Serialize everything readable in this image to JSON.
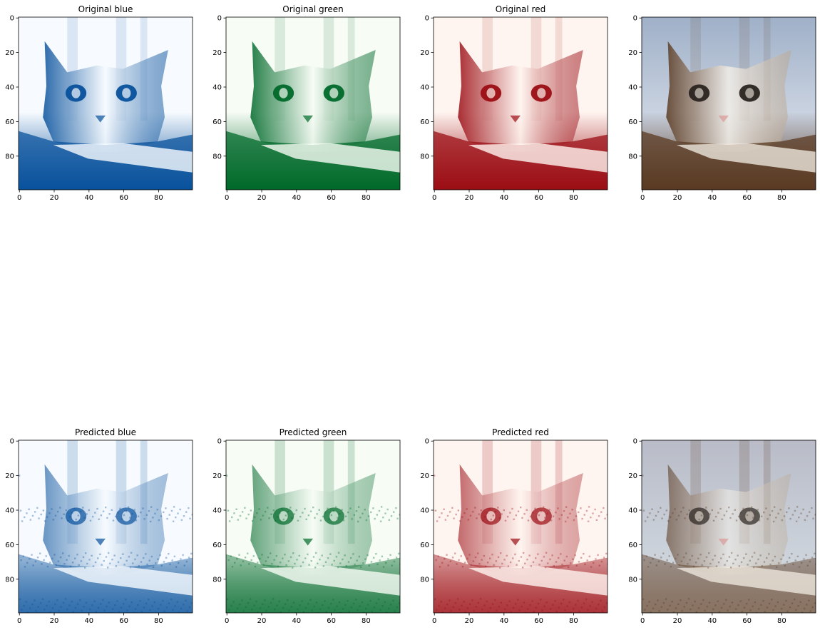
{
  "chart_data": {
    "type": "heatmap",
    "layout": "2 rows x 4 columns of image panels",
    "image_size": [
      100,
      100
    ],
    "x_ticks": [
      0,
      20,
      40,
      60,
      80
    ],
    "y_ticks": [
      0,
      20,
      40,
      60,
      80
    ],
    "xlim": [
      0,
      99
    ],
    "ylim": [
      99,
      0
    ],
    "panels": [
      {
        "row": 0,
        "col": 0,
        "title": "Original blue",
        "colormap": "Blues",
        "channel": "blue",
        "kind": "original"
      },
      {
        "row": 0,
        "col": 1,
        "title": "Original green",
        "colormap": "Greens",
        "channel": "green",
        "kind": "original"
      },
      {
        "row": 0,
        "col": 2,
        "title": "Original red",
        "colormap": "Reds",
        "channel": "red",
        "kind": "original"
      },
      {
        "row": 0,
        "col": 3,
        "title": "",
        "colormap": "rgb",
        "channel": "rgb",
        "kind": "original"
      },
      {
        "row": 1,
        "col": 0,
        "title": "Predicted blue",
        "colormap": "Blues",
        "channel": "blue",
        "kind": "predicted"
      },
      {
        "row": 1,
        "col": 1,
        "title": "Predicted green",
        "colormap": "Greens",
        "channel": "green",
        "kind": "predicted"
      },
      {
        "row": 1,
        "col": 2,
        "title": "Predicted red",
        "colormap": "Reds",
        "channel": "red",
        "kind": "predicted"
      },
      {
        "row": 1,
        "col": 3,
        "title": "",
        "colormap": "rgb",
        "channel": "rgb",
        "kind": "predicted"
      }
    ],
    "colors": {
      "blue_dark": "#08519c",
      "blue_light": "#f7fbff",
      "green_dark": "#00692a",
      "green_light": "#f7fcf5",
      "red_dark": "#9b0d14",
      "red_light": "#fff5f0",
      "rgb_fur_dark": "#5a3a22",
      "rgb_fur_light": "#e8e2d8",
      "rgb_bg": "#9fb0c8"
    }
  }
}
